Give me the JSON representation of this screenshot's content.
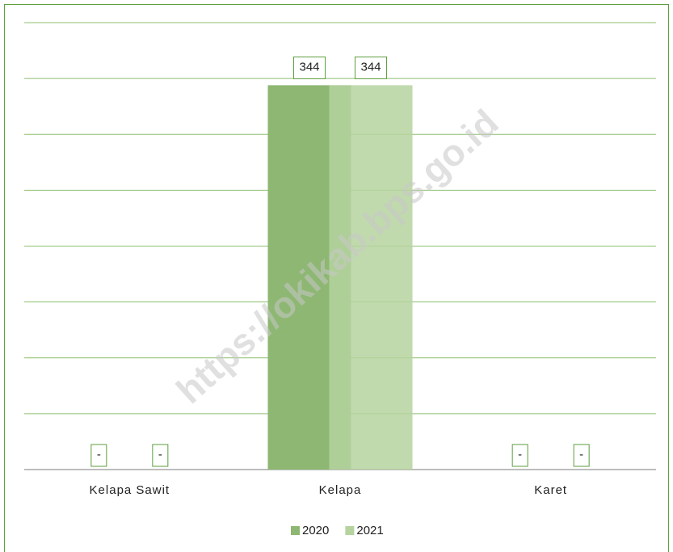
{
  "chart_data": {
    "type": "bar",
    "watermark": "https://okikab.bps.go.id",
    "categories": [
      "Kelapa Sawit",
      "Kelapa",
      "Karet"
    ],
    "series": [
      {
        "name": "2020",
        "color": "#8db772",
        "values": [
          null,
          344,
          null
        ],
        "value_labels": [
          "-",
          "344",
          "-"
        ]
      },
      {
        "name": "2021",
        "color": "#b5d39f",
        "values": [
          null,
          344,
          null
        ],
        "value_labels": [
          "-",
          "344",
          "-"
        ]
      }
    ],
    "ylim": [
      0,
      400
    ],
    "yticks": [
      0,
      50,
      100,
      150,
      200,
      250,
      300,
      350,
      400
    ],
    "grid": true,
    "legend": "bottom"
  }
}
